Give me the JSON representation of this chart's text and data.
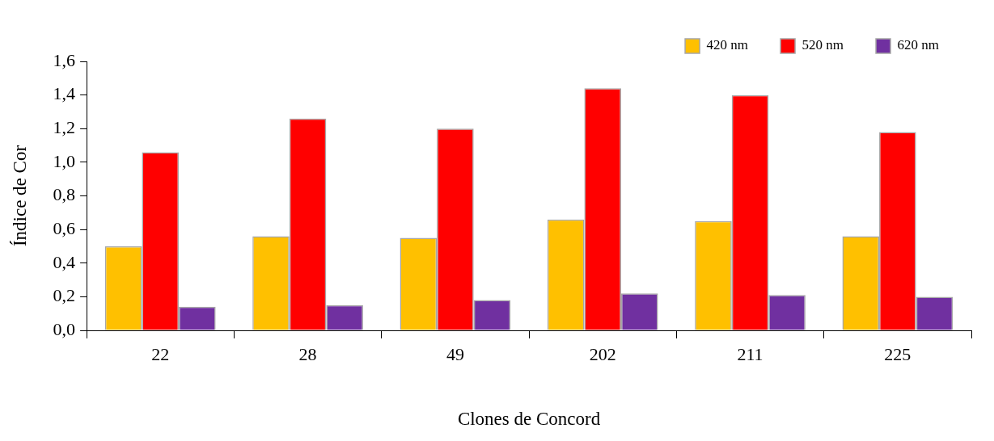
{
  "chart_data": {
    "type": "bar",
    "xlabel": "Clones de Concord",
    "ylabel": "Índice de Cor",
    "categories": [
      "22",
      "28",
      "49",
      "202",
      "211",
      "225"
    ],
    "series": [
      {
        "name": "420 nm",
        "color": "#ffc000",
        "values": [
          0.5,
          0.56,
          0.55,
          0.66,
          0.65,
          0.56
        ]
      },
      {
        "name": "520 nm",
        "color": "#ff0000",
        "values": [
          1.06,
          1.26,
          1.2,
          1.44,
          1.4,
          1.18
        ]
      },
      {
        "name": "620 nm",
        "color": "#7030a0",
        "values": [
          0.14,
          0.15,
          0.18,
          0.22,
          0.21,
          0.2
        ]
      }
    ],
    "ylim": [
      0,
      1.6
    ],
    "yticks": [
      {
        "value": 0,
        "label": "0,0"
      },
      {
        "value": 0.2,
        "label": "0,2"
      },
      {
        "value": 0.4,
        "label": "0,4"
      },
      {
        "value": 0.6,
        "label": "0,6"
      },
      {
        "value": 0.8,
        "label": "0,8"
      },
      {
        "value": 1,
        "label": "1,0"
      },
      {
        "value": 1.2,
        "label": "1,2"
      },
      {
        "value": 1.4,
        "label": "1,4"
      },
      {
        "value": 1.6,
        "label": "1,6"
      }
    ],
    "grid": false,
    "legend": "top right"
  }
}
